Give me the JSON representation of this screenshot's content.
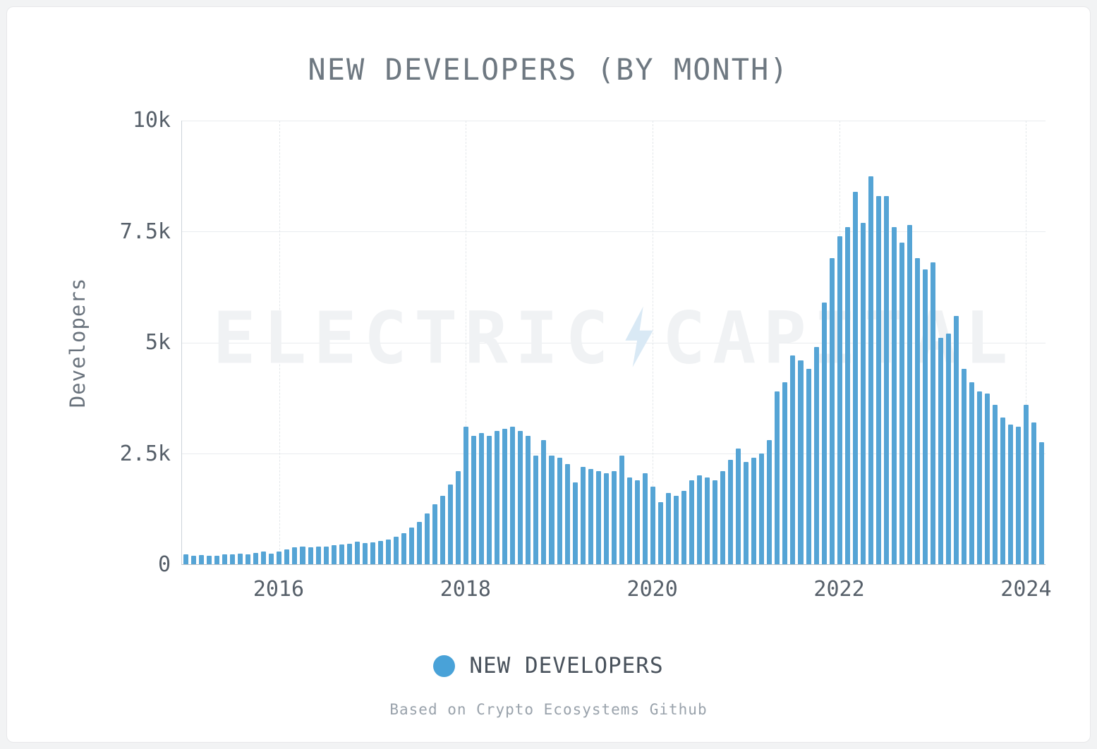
{
  "page": {
    "background": "#f2f3f4",
    "card_background": "#ffffff"
  },
  "title": "NEW DEVELOPERS (BY MONTH)",
  "watermark": {
    "left": "ELECTRIC",
    "right": "CAPITAL",
    "bolt_icon": "lightning-bolt",
    "bolt_color": "#d9e9f5"
  },
  "legend": {
    "label": "NEW DEVELOPERS",
    "marker_color": "#49a2d8"
  },
  "source_note": "Based on Crypto Ecosystems Github",
  "chart_data": {
    "type": "bar",
    "title": "NEW DEVELOPERS (BY MONTH)",
    "xlabel": "",
    "ylabel": "Developers",
    "ylim": [
      0,
      10000
    ],
    "bar_color": "#55a4d5",
    "grid": "horizontal solid lines at y ticks, vertical dashed lines at year ticks",
    "legend_position": "bottom",
    "x_start": "2015-01",
    "x_interval": "month",
    "x_tick_labels": [
      "2016",
      "2018",
      "2020",
      "2022",
      "2024"
    ],
    "x_tick_month_index": [
      12,
      36,
      60,
      84,
      108
    ],
    "y_tick_labels": [
      "0",
      "2.5k",
      "5k",
      "7.5k",
      "10k"
    ],
    "y_tick_values": [
      0,
      2500,
      5000,
      7500,
      10000
    ],
    "series": [
      {
        "name": "NEW DEVELOPERS",
        "values": [
          230,
          190,
          210,
          185,
          195,
          225,
          230,
          235,
          230,
          255,
          280,
          245,
          285,
          330,
          385,
          405,
          385,
          390,
          405,
          425,
          445,
          465,
          505,
          485,
          500,
          520,
          560,
          620,
          700,
          820,
          950,
          1150,
          1350,
          1550,
          1800,
          2100,
          3100,
          2900,
          2950,
          2900,
          3000,
          3050,
          3100,
          3000,
          2900,
          2450,
          2800,
          2450,
          2400,
          2250,
          1850,
          2200,
          2150,
          2100,
          2050,
          2100,
          2450,
          1950,
          1900,
          2050,
          1750,
          1400,
          1600,
          1550,
          1650,
          1900,
          2000,
          1950,
          1900,
          2100,
          2350,
          2600,
          2300,
          2400,
          2500,
          2800,
          3900,
          4100,
          4700,
          4600,
          4400,
          4900,
          5900,
          6900,
          7400,
          7600,
          8400,
          7700,
          8750,
          8300,
          8300,
          7600,
          7250,
          7650,
          6900,
          6650,
          6800,
          5100,
          5200,
          5600,
          4400,
          4100,
          3900,
          3850,
          3600,
          3300,
          3150,
          3100,
          3600,
          3200,
          2750
        ]
      }
    ]
  }
}
